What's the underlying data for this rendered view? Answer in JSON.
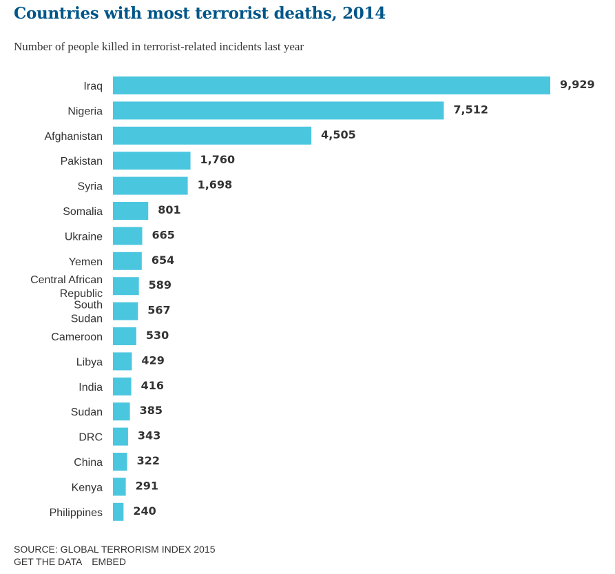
{
  "chart_data": {
    "type": "bar",
    "orientation": "horizontal",
    "title": "Countries with most terrorist deaths, 2014",
    "subtitle": "Number of people killed in terrorist-related incidents last year",
    "categories": [
      [
        "Iraq"
      ],
      [
        "Nigeria"
      ],
      [
        "Afghanistan"
      ],
      [
        "Pakistan"
      ],
      [
        "Syria"
      ],
      [
        "Somalia"
      ],
      [
        "Ukraine"
      ],
      [
        "Yemen"
      ],
      [
        "Central African",
        "Republic"
      ],
      [
        "South",
        "Sudan"
      ],
      [
        "Cameroon"
      ],
      [
        "Libya"
      ],
      [
        "India"
      ],
      [
        "Sudan"
      ],
      [
        "DRC"
      ],
      [
        "China"
      ],
      [
        "Kenya"
      ],
      [
        "Philippines"
      ]
    ],
    "values": [
      9929,
      7512,
      4505,
      1760,
      1698,
      801,
      665,
      654,
      589,
      567,
      530,
      429,
      416,
      385,
      343,
      322,
      291,
      240
    ],
    "value_labels": [
      "9,929",
      "7,512",
      "4,505",
      "1,760",
      "1,698",
      "801",
      "665",
      "654",
      "589",
      "567",
      "530",
      "429",
      "416",
      "385",
      "343",
      "322",
      "291",
      "240"
    ],
    "xlim": [
      0,
      9929
    ],
    "xlabel": "",
    "ylabel": "",
    "grid": false,
    "legend": "none",
    "bar_color": "#4bc6df"
  },
  "footer": {
    "source": "SOURCE: GLOBAL TERRORISM INDEX 2015",
    "get_data": "GET THE DATA",
    "embed": "EMBED"
  }
}
